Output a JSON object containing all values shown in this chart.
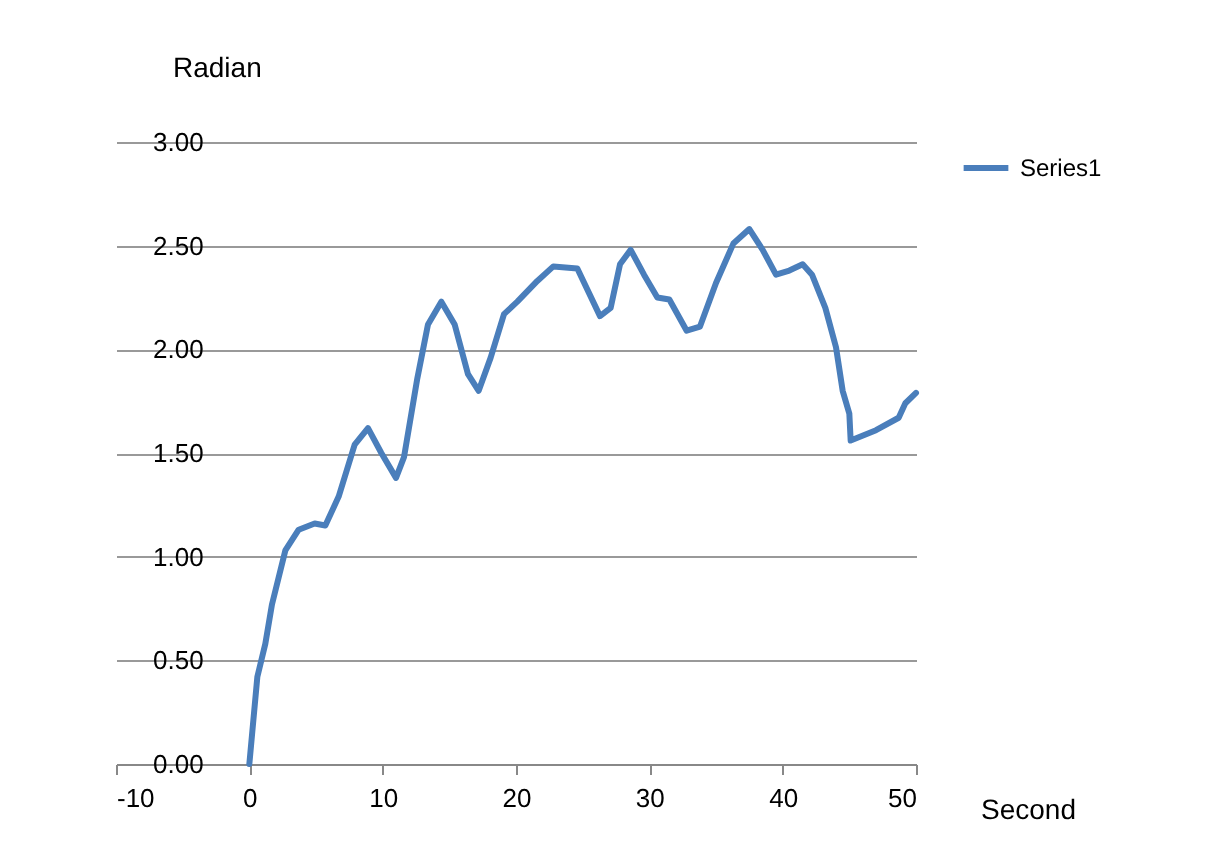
{
  "chart_data": {
    "type": "line",
    "xlabel": "Second",
    "ylabel": "Radian",
    "x": [
      0,
      0.6,
      1.2,
      1.7,
      2.7,
      3.7,
      4.9,
      5.7,
      6.7,
      7.9,
      8.9,
      9.9,
      11.0,
      11.6,
      12.6,
      13.4,
      14.4,
      15.4,
      16.4,
      17.2,
      18.1,
      19.1,
      20.1,
      21.6,
      22.8,
      24.6,
      26.3,
      27.1,
      27.8,
      28.6,
      29.6,
      30.6,
      31.5,
      32.8,
      33.8,
      35.0,
      36.3,
      37.5,
      38.5,
      39.5,
      40.5,
      41.5,
      42.2,
      43.2,
      44.0,
      44.5,
      45.0,
      45.1,
      47.0,
      48.7,
      49.2,
      50.0
    ],
    "series": [
      {
        "name": "Series1",
        "color": "#4a7ebb",
        "values": [
          0,
          0.42,
          0.58,
          0.77,
          1.03,
          1.13,
          1.16,
          1.15,
          1.29,
          1.54,
          1.62,
          1.5,
          1.38,
          1.48,
          1.86,
          2.12,
          2.23,
          2.12,
          1.88,
          1.8,
          1.96,
          2.17,
          2.23,
          2.33,
          2.4,
          2.39,
          2.16,
          2.2,
          2.41,
          2.48,
          2.36,
          2.25,
          2.24,
          2.09,
          2.11,
          2.32,
          2.51,
          2.58,
          2.48,
          2.36,
          2.38,
          2.41,
          2.36,
          2.2,
          2.01,
          1.8,
          1.69,
          1.56,
          1.61,
          1.67,
          1.74,
          1.79
        ]
      }
    ],
    "xlim": [
      -10,
      50
    ],
    "xticks": [
      -10,
      0,
      10,
      20,
      30,
      40,
      50
    ],
    "ylim": [
      0,
      3
    ],
    "yticks": [
      {
        "value": 0,
        "label": "0.00"
      },
      {
        "value": 0.5,
        "label": "0.50"
      },
      {
        "value": 1,
        "label": "1.00"
      },
      {
        "value": 1.5,
        "label": "1.50"
      },
      {
        "value": 2,
        "label": "2.00"
      },
      {
        "value": 2.5,
        "label": "2.50"
      },
      {
        "value": 3,
        "label": "3.00"
      }
    ],
    "grid": "y",
    "legend": "right",
    "marker": "none",
    "line_style": "solid"
  }
}
